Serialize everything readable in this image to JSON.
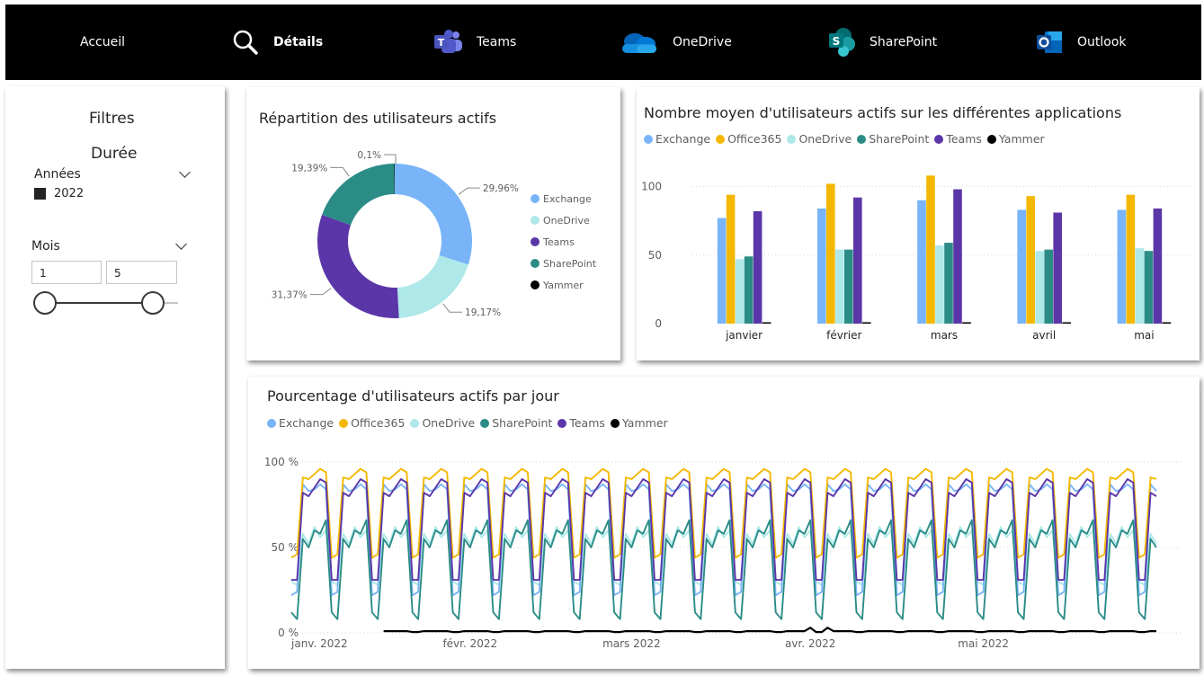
{
  "nav": {
    "items": [
      {
        "label": "Accueil",
        "icon": "home"
      },
      {
        "label": "Détails",
        "icon": "magnifier-icon"
      },
      {
        "label": "Teams",
        "icon": "teams-icon"
      },
      {
        "label": "OneDrive",
        "icon": "onedrive-icon"
      },
      {
        "label": "SharePoint",
        "icon": "sharepoint-icon"
      },
      {
        "label": "Outlook",
        "icon": "outlook-icon"
      }
    ]
  },
  "filters": {
    "title": "Filtres",
    "section": "Durée",
    "years": {
      "label": "Années",
      "option": "2022",
      "checked": true
    },
    "months": {
      "label": "Mois",
      "min": "1",
      "max": "5"
    }
  },
  "colors": {
    "exchange": "#78b4f7",
    "office365": "#f4b800",
    "onedrive": "#aee8e9",
    "sharepoint": "#2b8c86",
    "teams": "#5b36a8",
    "yammer": "#000000"
  },
  "chart_data": [
    {
      "type": "pie",
      "title": "Répartition des utilisateurs actifs",
      "slices": [
        {
          "label": "Exchange",
          "value": 29.96,
          "display": "29,96%"
        },
        {
          "label": "OneDrive",
          "value": 19.17,
          "display": "19,17%"
        },
        {
          "label": "Teams",
          "value": 31.37,
          "display": "31,37%"
        },
        {
          "label": "SharePoint",
          "value": 19.39,
          "display": "19,39%"
        },
        {
          "label": "Yammer",
          "value": 0.1,
          "display": "0,1%"
        }
      ],
      "legend": [
        "Exchange",
        "OneDrive",
        "Teams",
        "SharePoint",
        "Yammer"
      ],
      "donut": true
    },
    {
      "type": "bar",
      "title": "Nombre moyen d'utilisateurs actifs sur les différentes applications",
      "categories": [
        "janvier",
        "février",
        "mars",
        "avril",
        "mai"
      ],
      "series": [
        {
          "name": "Exchange",
          "values": [
            77,
            84,
            90,
            83,
            83
          ]
        },
        {
          "name": "Office365",
          "values": [
            94,
            102,
            108,
            93,
            94
          ]
        },
        {
          "name": "OneDrive",
          "values": [
            47,
            54,
            57,
            53,
            55
          ]
        },
        {
          "name": "SharePoint",
          "values": [
            49,
            54,
            59,
            54,
            53
          ]
        },
        {
          "name": "Teams",
          "values": [
            82,
            92,
            98,
            81,
            84
          ]
        },
        {
          "name": "Yammer",
          "values": [
            1,
            1,
            1,
            1,
            1
          ]
        }
      ],
      "yticks": [
        "0",
        "50",
        "100"
      ],
      "ylim": [
        0,
        120
      ],
      "grid": true,
      "legend_position": "top-left"
    },
    {
      "type": "line",
      "title": "Pourcentage d'utilisateurs actifs par jour",
      "x_start": "2022-01-01",
      "x_end": "2022-05-31",
      "xticks": [
        "janv. 2022",
        "févr. 2022",
        "mars 2022",
        "avr. 2022",
        "mai 2022"
      ],
      "yticks": [
        "0 %",
        "50 %",
        "100 %"
      ],
      "ylim": [
        0,
        100
      ],
      "pattern": "weekly",
      "series": [
        {
          "name": "Exchange",
          "weekday": [
            87,
            83,
            84,
            87,
            84
          ],
          "weekend": [
            22,
            24
          ]
        },
        {
          "name": "Office365",
          "weekday": [
            91,
            90,
            93,
            96,
            94
          ],
          "weekend": [
            44,
            46
          ]
        },
        {
          "name": "OneDrive",
          "weekday": [
            58,
            52,
            62,
            56,
            60
          ],
          "weekend": [
            30,
            28
          ]
        },
        {
          "name": "SharePoint",
          "weekday": [
            55,
            50,
            60,
            58,
            66
          ],
          "weekend": [
            12,
            8
          ]
        },
        {
          "name": "Teams",
          "weekday": [
            82,
            80,
            85,
            90,
            88
          ],
          "weekend": [
            31,
            31
          ]
        },
        {
          "name": "Yammer",
          "weekday": [
            1,
            1,
            1,
            1,
            1
          ],
          "weekend": [
            0.5,
            0.5
          ]
        }
      ],
      "grid": true,
      "legend_position": "top-left"
    }
  ]
}
